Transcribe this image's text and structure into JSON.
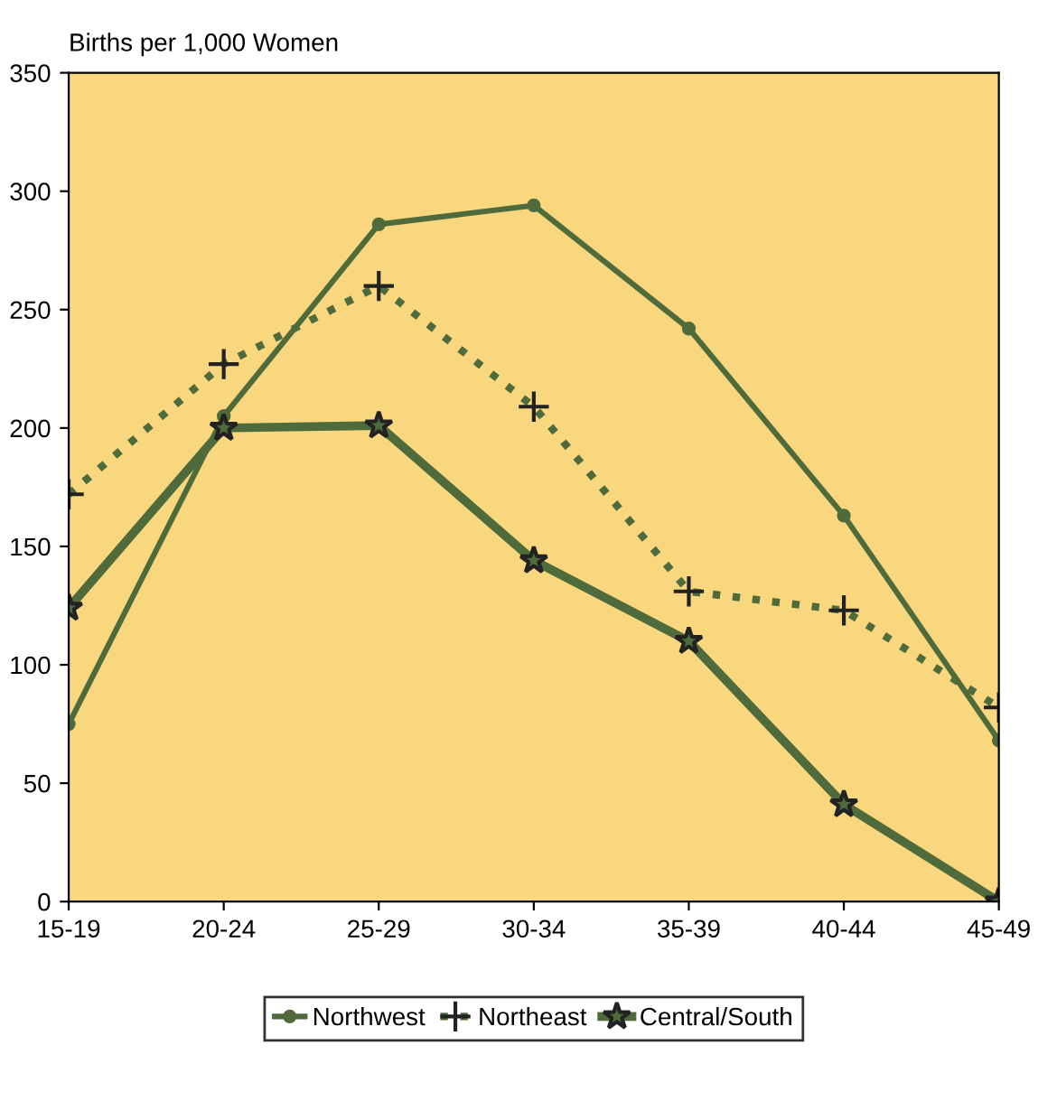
{
  "chart_data": {
    "type": "line",
    "ylabel": "Births per 1,000 Women",
    "categories": [
      "15-19",
      "20-24",
      "25-29",
      "30-34",
      "35-39",
      "40-44",
      "45-49"
    ],
    "series": [
      {
        "name": "Northwest",
        "color": "#4f6b3c",
        "values": [
          75,
          205,
          286,
          294,
          242,
          163,
          68
        ],
        "marker": "circle",
        "line_style": "solid"
      },
      {
        "name": "Northeast",
        "color": "#4f6b3c",
        "values": [
          172,
          227,
          260,
          209,
          131,
          123,
          82
        ],
        "marker": "cross",
        "line_style": "dotted"
      },
      {
        "name": "Central/South",
        "color": "#4f6b3c",
        "values": [
          124,
          200,
          201,
          144,
          110,
          41,
          0
        ],
        "marker": "star",
        "line_style": "solid"
      }
    ],
    "ylim": [
      0,
      350
    ],
    "yticks": [
      0,
      50,
      100,
      150,
      200,
      250,
      300,
      350
    ],
    "grid": false,
    "legend": "bottom"
  }
}
